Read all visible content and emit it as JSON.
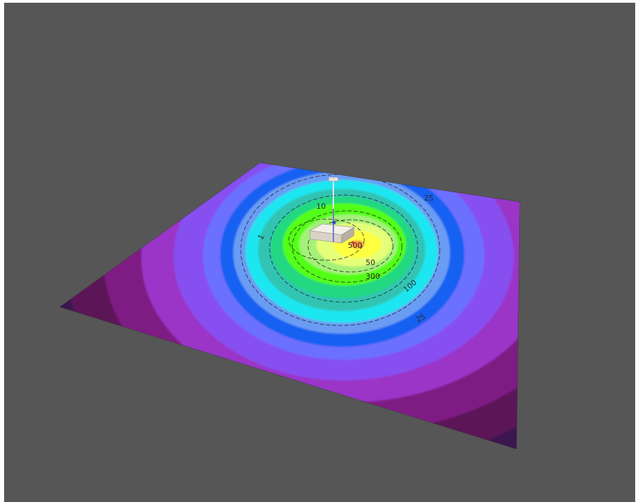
{
  "scene": {
    "background_color": "#565656",
    "plane": {
      "description_colors": [
        "#0c0c4e",
        "#3a1450",
        "#5c1458",
        "#7e1a84",
        "#9a35c8",
        "#8750f0",
        "#6c70ff",
        "#1660f2",
        "#6b9cf4",
        "#1fe6f0",
        "#32c4b2",
        "#20d880",
        "#52ff12",
        "#a4f078",
        "#e6ff78",
        "#ffff42"
      ]
    },
    "contour_labels": [
      "25",
      "10",
      "50",
      "100",
      "300",
      "500",
      "25",
      "1"
    ],
    "objects": {
      "building": "building-block",
      "stack": "stack-pole",
      "source_marker": "source-point"
    }
  }
}
